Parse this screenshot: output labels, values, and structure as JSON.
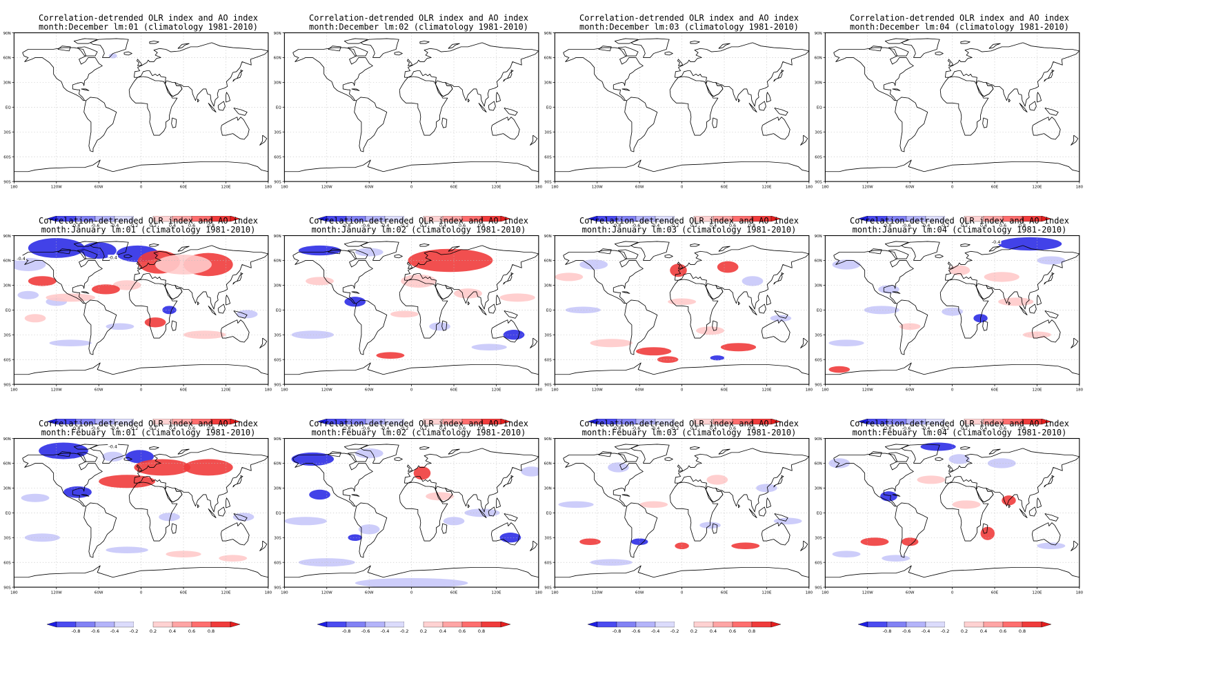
{
  "title_line1": "Correlation-detrended OLR index and AO index",
  "climatology": "(climatology 1981-2010)",
  "lead_prefix": "lm:",
  "month_prefix": "month:",
  "months": [
    "December",
    "January",
    "Febuary"
  ],
  "leads": [
    "01",
    "02",
    "03",
    "04"
  ],
  "lat_ticks": [
    "90N",
    "60N",
    "30N",
    "EQ",
    "30S",
    "60S",
    "90S"
  ],
  "lon_ticks": [
    "180",
    "120W",
    "60W",
    "0",
    "60E",
    "120E",
    "180"
  ],
  "colorbar": {
    "ticks": [
      "-0.8",
      "-0.6",
      "-0.4",
      "-0.2",
      "0.2",
      "0.4",
      "0.6",
      "0.8"
    ],
    "levels": [
      -1.0,
      -0.8,
      -0.6,
      -0.4,
      -0.2,
      0.2,
      0.4,
      0.6,
      0.8,
      1.0
    ],
    "colors": [
      "#1e1ee6",
      "#4b4bf0",
      "#8282f5",
      "#b4b4fa",
      "#dcdcfc",
      "#ffffff",
      "#ffd2d2",
      "#ffa5a5",
      "#ff6e6e",
      "#f03c3c",
      "#e61e1e"
    ]
  },
  "contour_labels": {
    "January_01": [
      "-0.4",
      "-0.4"
    ],
    "January_04": [
      "-0.4"
    ],
    "Febuary_01": [
      "-0.4"
    ]
  },
  "colors": {
    "negative_strong": "#2d2de6",
    "negative_weak": "#c8c8fa",
    "positive_weak": "#ffcaca",
    "positive_strong": "#f03c3c",
    "coast": "#000000"
  }
}
